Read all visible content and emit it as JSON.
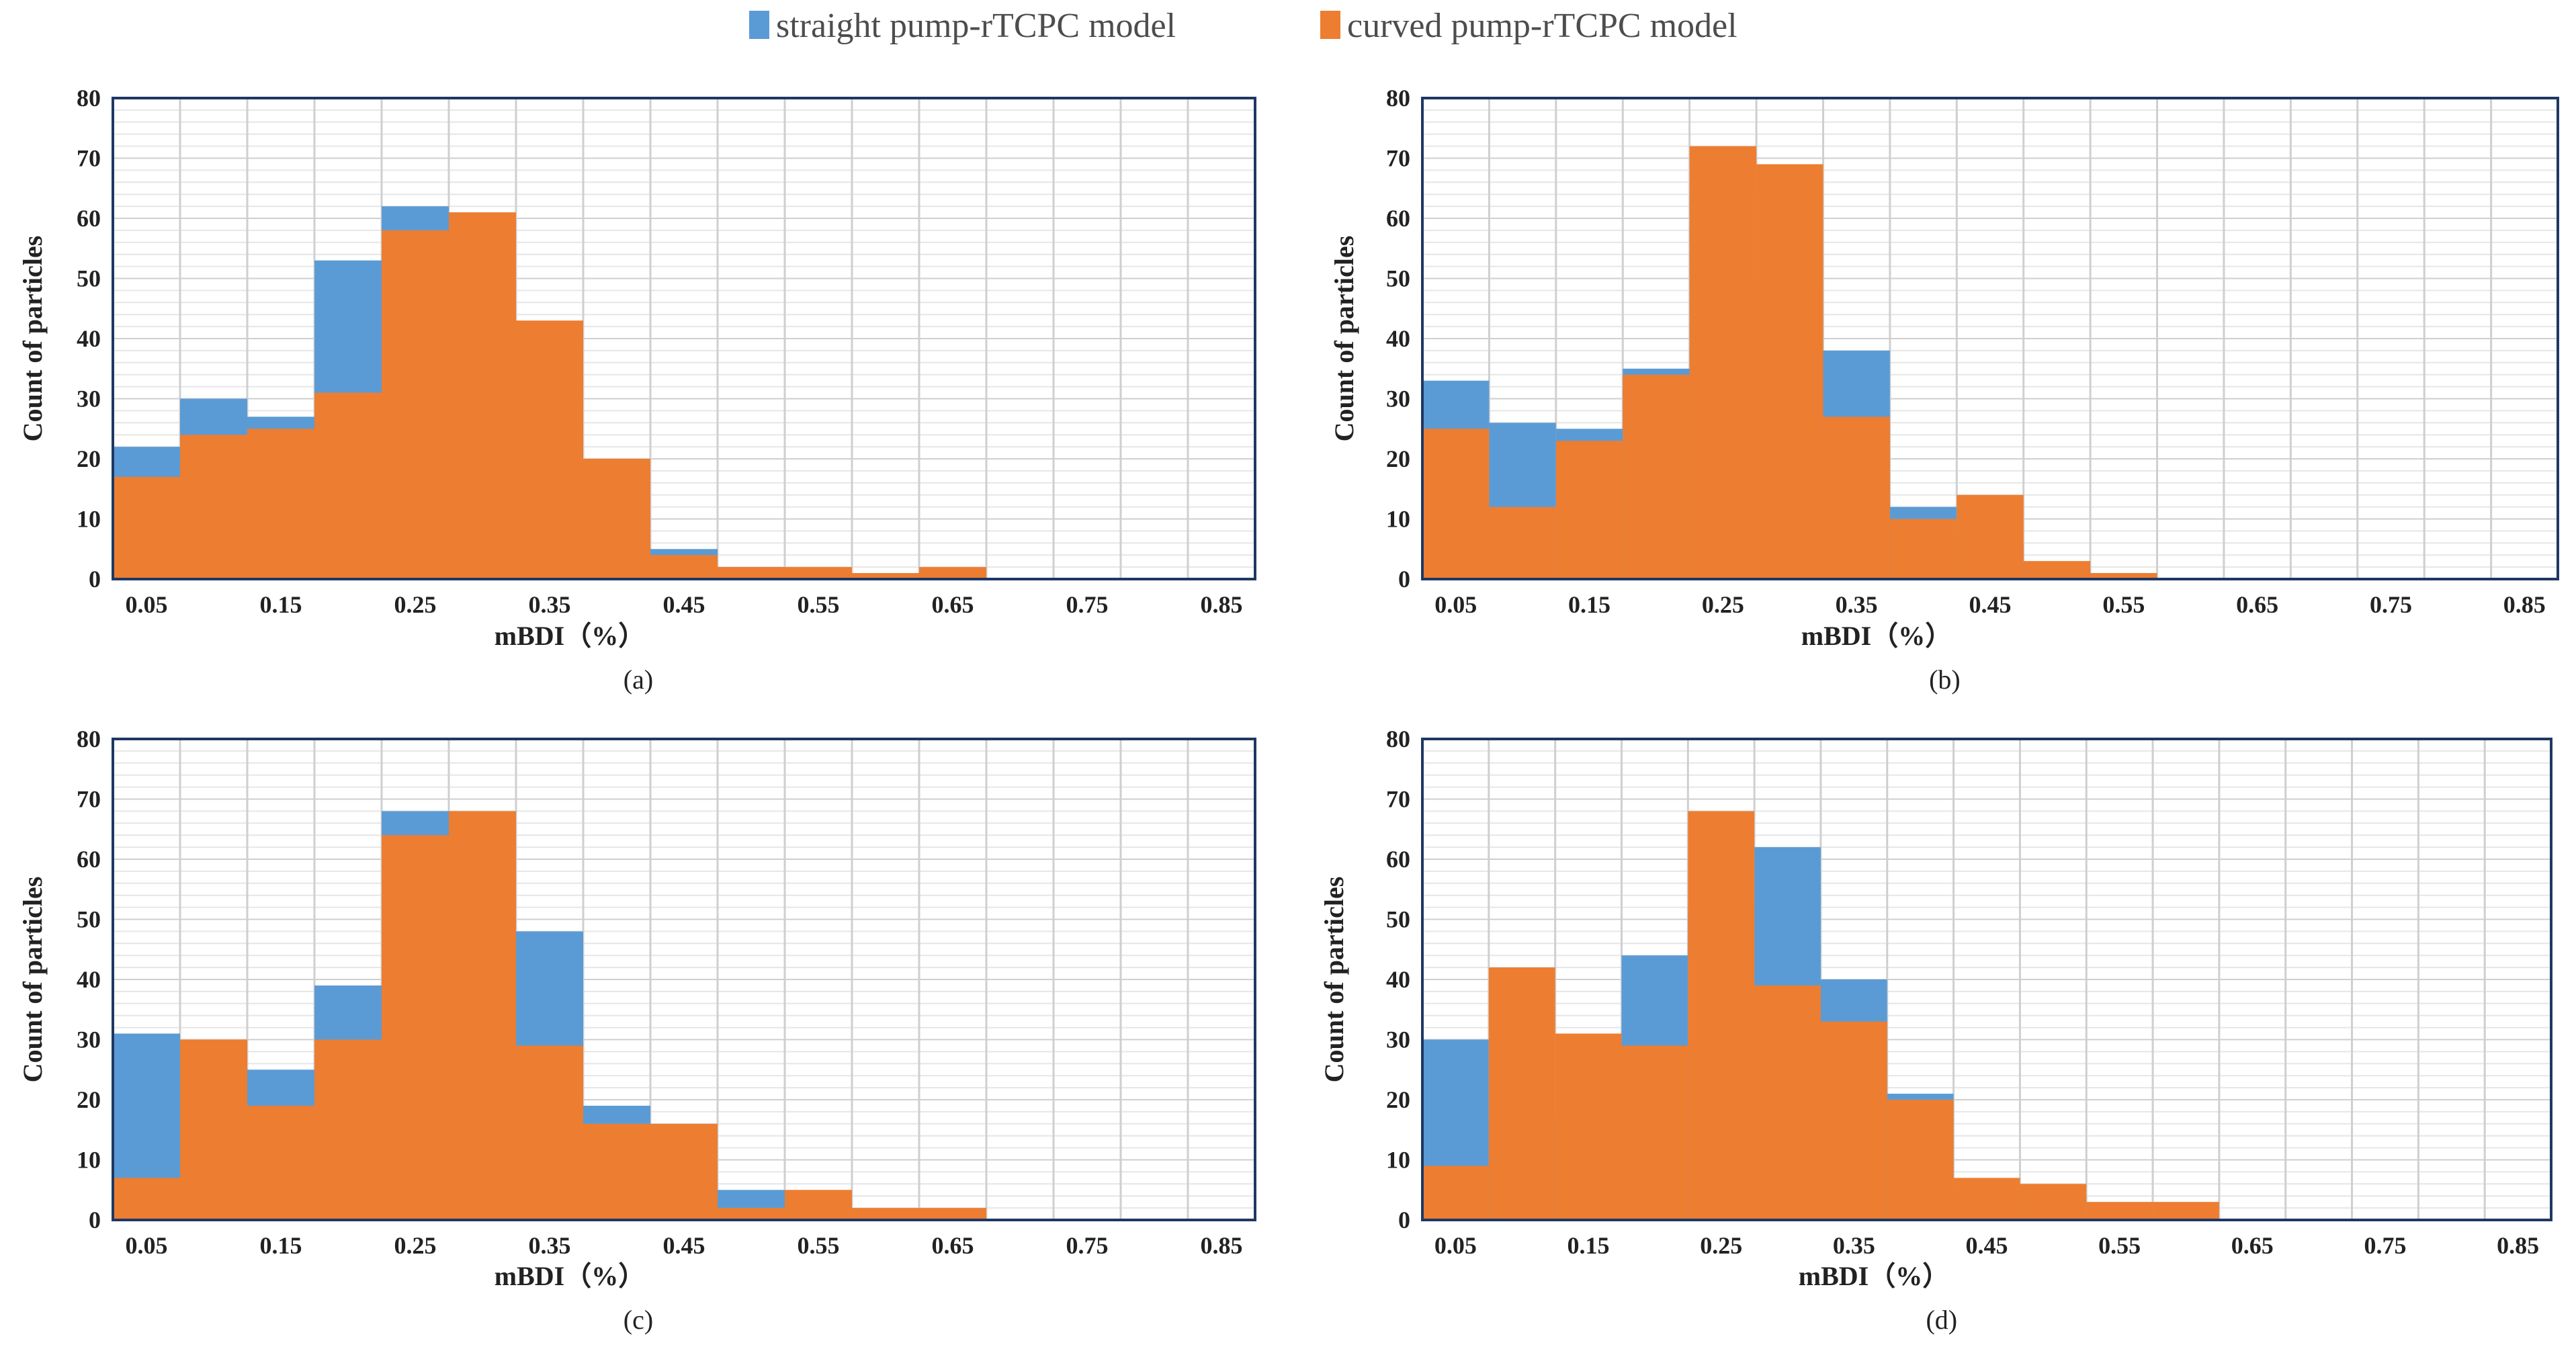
{
  "legend": [
    {
      "name": "straight pump-rTCPC model",
      "color": "#5B9BD5"
    },
    {
      "name": "curved pump-rTCPC model",
      "color": "#ED7D31"
    }
  ],
  "chart_data": [
    {
      "type": "bar",
      "panel": "(a)",
      "xlabel": "mBDI（%）",
      "ylabel": "Count of particles",
      "ylim": [
        0,
        80
      ],
      "yticks": [
        "0",
        "10",
        "20",
        "30",
        "40",
        "50",
        "60",
        "70",
        "80"
      ],
      "xticks": [
        "0.05",
        "0.15",
        "0.25",
        "0.35",
        "0.45",
        "0.55",
        "0.65",
        "0.75",
        "0.85"
      ],
      "bins": 17,
      "series": [
        {
          "name": "straight pump-rTCPC model",
          "values": [
            22,
            30,
            27,
            53,
            62,
            45,
            29,
            15,
            5,
            2,
            1,
            0,
            0,
            0,
            0,
            0,
            0
          ]
        },
        {
          "name": "curved pump-rTCPC model",
          "values": [
            17,
            24,
            25,
            31,
            58,
            61,
            43,
            20,
            4,
            2,
            2,
            1,
            2,
            0,
            0,
            0,
            0
          ]
        }
      ]
    },
    {
      "type": "bar",
      "panel": "(b)",
      "xlabel": "mBDI（%）",
      "ylabel": "Count of particles",
      "ylim": [
        0,
        80
      ],
      "yticks": [
        "0",
        "10",
        "20",
        "30",
        "40",
        "50",
        "60",
        "70",
        "80"
      ],
      "xticks": [
        "0.05",
        "0.15",
        "0.25",
        "0.35",
        "0.45",
        "0.55",
        "0.65",
        "0.75",
        "0.85"
      ],
      "bins": 17,
      "series": [
        {
          "name": "straight pump-rTCPC model",
          "values": [
            33,
            26,
            25,
            35,
            64,
            49,
            38,
            12,
            6,
            2,
            1,
            0,
            0,
            0,
            0,
            0,
            0
          ]
        },
        {
          "name": "curved pump-rTCPC model",
          "values": [
            25,
            12,
            23,
            34,
            72,
            69,
            27,
            10,
            14,
            3,
            1,
            0,
            0,
            0,
            0,
            0,
            0
          ]
        }
      ]
    },
    {
      "type": "bar",
      "panel": "(c)",
      "xlabel": "mBDI（%）",
      "ylabel": "Count of particles",
      "ylim": [
        0,
        80
      ],
      "yticks": [
        "0",
        "10",
        "20",
        "30",
        "40",
        "50",
        "60",
        "70",
        "80"
      ],
      "xticks": [
        "0.05",
        "0.15",
        "0.25",
        "0.35",
        "0.45",
        "0.55",
        "0.65",
        "0.75",
        "0.85"
      ],
      "bins": 17,
      "series": [
        {
          "name": "straight pump-rTCPC model",
          "values": [
            31,
            22,
            25,
            39,
            68,
            31,
            48,
            19,
            3,
            5,
            0,
            0,
            0,
            0,
            0,
            0,
            0
          ]
        },
        {
          "name": "curved pump-rTCPC model",
          "values": [
            7,
            30,
            19,
            30,
            64,
            68,
            29,
            16,
            16,
            2,
            5,
            2,
            2,
            0,
            0,
            0,
            0
          ]
        }
      ]
    },
    {
      "type": "bar",
      "panel": "(d)",
      "xlabel": "mBDI（%）",
      "ylabel": "Count of particles",
      "ylim": [
        0,
        80
      ],
      "yticks": [
        "0",
        "10",
        "20",
        "30",
        "40",
        "50",
        "60",
        "70",
        "80"
      ],
      "xticks": [
        "0.05",
        "0.15",
        "0.25",
        "0.35",
        "0.45",
        "0.55",
        "0.65",
        "0.75",
        "0.85"
      ],
      "bins": 17,
      "series": [
        {
          "name": "straight pump-rTCPC model",
          "values": [
            30,
            16,
            17,
            44,
            52,
            62,
            40,
            21,
            5,
            4,
            0,
            0,
            0,
            0,
            0,
            0,
            0
          ]
        },
        {
          "name": "curved pump-rTCPC model",
          "values": [
            9,
            42,
            31,
            29,
            68,
            39,
            33,
            20,
            7,
            6,
            3,
            3,
            0,
            0,
            0,
            0,
            0
          ]
        }
      ]
    }
  ]
}
